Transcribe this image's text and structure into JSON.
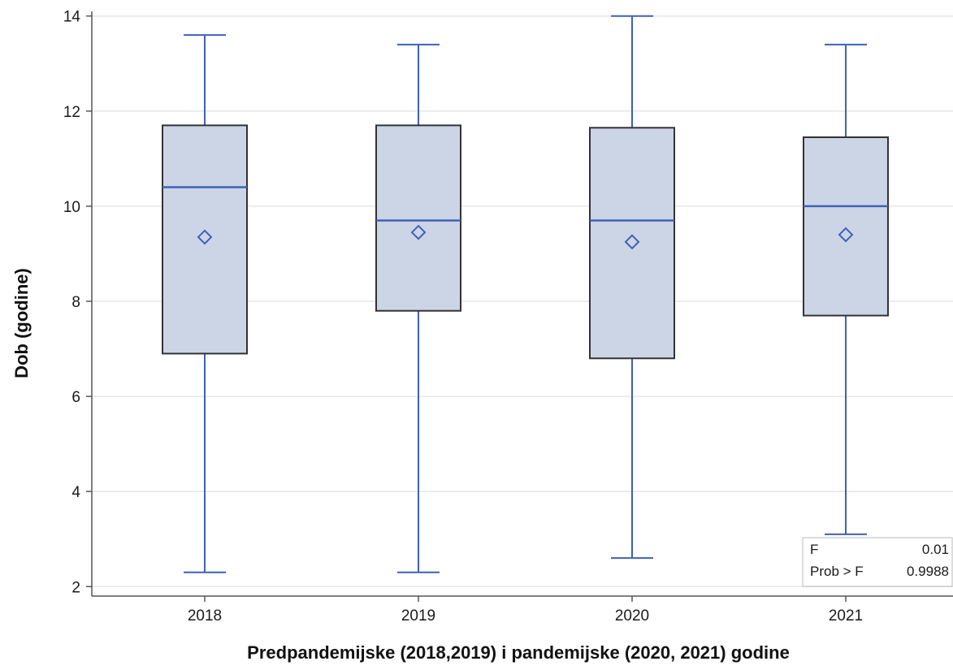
{
  "chart_data": {
    "type": "box",
    "xlabel": "Predpandemijske (2018,2019) i pandemijske (2020, 2021) godine",
    "ylabel": "Dob (godine)",
    "ylim": [
      1.8,
      14.2
    ],
    "yticks": [
      2,
      4,
      6,
      8,
      10,
      12,
      14
    ],
    "grid": true,
    "categories": [
      "2018",
      "2019",
      "2020",
      "2021"
    ],
    "boxes": [
      {
        "category": "2018",
        "min": 2.3,
        "q1": 6.9,
        "median": 10.4,
        "q3": 11.7,
        "max": 13.6,
        "mean": 9.35
      },
      {
        "category": "2019",
        "min": 2.3,
        "q1": 7.8,
        "median": 9.7,
        "q3": 11.7,
        "max": 13.4,
        "mean": 9.45
      },
      {
        "category": "2020",
        "min": 2.6,
        "q1": 6.8,
        "median": 9.7,
        "q3": 11.65,
        "max": 14.0,
        "mean": 9.25
      },
      {
        "category": "2021",
        "min": 3.1,
        "q1": 7.7,
        "median": 10.0,
        "q3": 11.45,
        "max": 13.4,
        "mean": 9.4
      }
    ],
    "stats_inset": {
      "rows": [
        {
          "label": "F",
          "value": "0.01"
        },
        {
          "label": "Prob > F",
          "value": "0.9988"
        }
      ],
      "position": "bottom-right"
    },
    "colors": {
      "box_fill": "#cbd5e6",
      "box_edge": "#333333",
      "whisker": "#4060b8",
      "median": "#4060b8",
      "mean_marker": "#4060b8",
      "grid": "#e6e6e6",
      "axis": "#555555"
    }
  }
}
